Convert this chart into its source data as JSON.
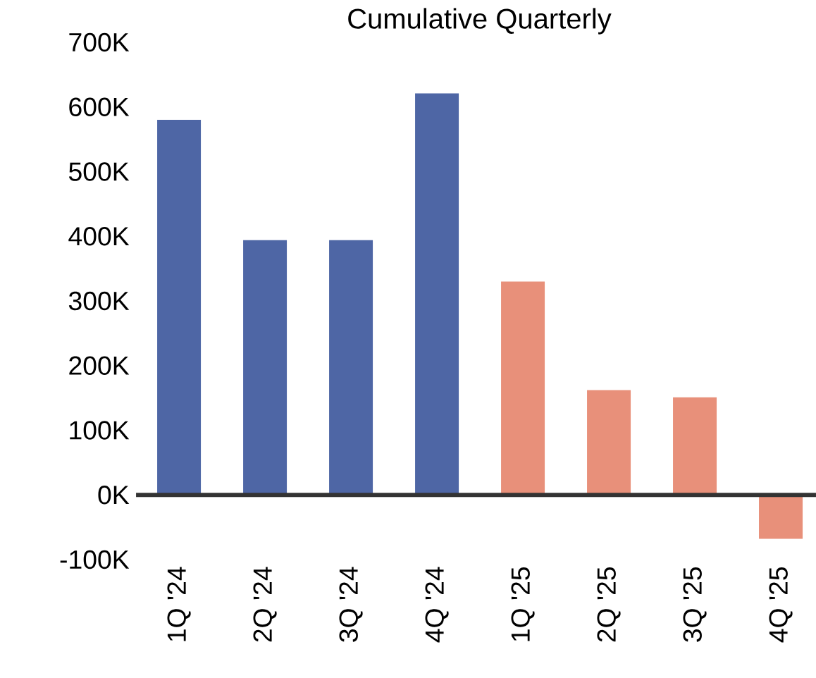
{
  "chart_data": {
    "type": "bar",
    "title": "Cumulative Quarterly",
    "categories": [
      "1Q '24",
      "2Q '24",
      "3Q '24",
      "4Q '24",
      "1Q '25",
      "2Q '25",
      "3Q '25",
      "4Q '25"
    ],
    "values": [
      580000,
      394000,
      394000,
      621000,
      330000,
      162000,
      151000,
      -68000
    ],
    "colors": [
      "#4e66a5",
      "#4e66a5",
      "#4e66a5",
      "#4e66a5",
      "#e8907a",
      "#e8907a",
      "#e8907a",
      "#e8907a"
    ],
    "ylim": [
      -100000,
      700000
    ],
    "yticks": [
      {
        "value": -100000,
        "label": "-100K"
      },
      {
        "value": 0,
        "label": "0K"
      },
      {
        "value": 100000,
        "label": "100K"
      },
      {
        "value": 200000,
        "label": "200K"
      },
      {
        "value": 300000,
        "label": "300K"
      },
      {
        "value": 400000,
        "label": "400K"
      },
      {
        "value": 500000,
        "label": "500K"
      },
      {
        "value": 600000,
        "label": "600K"
      },
      {
        "value": 700000,
        "label": "700K"
      }
    ],
    "legend": false
  }
}
